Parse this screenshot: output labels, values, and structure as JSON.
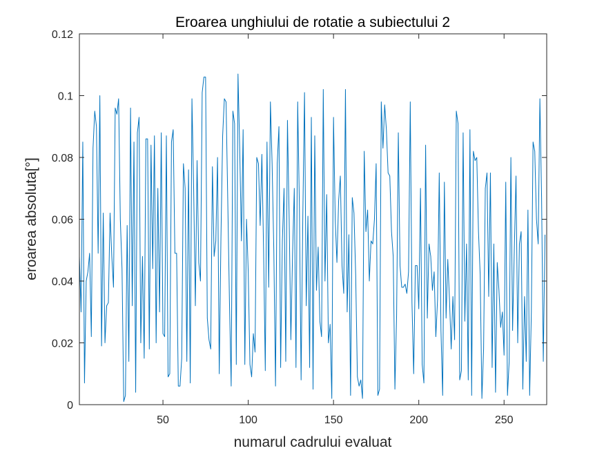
{
  "chart_data": {
    "type": "line",
    "title": "Eroarea unghiului de rotatie a subiectului 2",
    "xlabel": "numarul cadrului evaluat",
    "ylabel": "eroarea absoluta[°]",
    "xlim": [
      1,
      275
    ],
    "ylim": [
      0,
      0.12
    ],
    "xticks": [
      50,
      100,
      150,
      200,
      250
    ],
    "yticks": [
      0,
      0.02,
      0.04,
      0.06,
      0.08,
      0.1,
      0.12
    ],
    "grid": false,
    "series": [
      {
        "color": "#0072BD",
        "x_start": 1,
        "x_step": 1,
        "values": [
          0.048,
          0.03,
          0.085,
          0.007,
          0.04,
          0.043,
          0.049,
          0.022,
          0.083,
          0.095,
          0.09,
          0.049,
          0.1,
          0.019,
          0.062,
          0.02,
          0.032,
          0.033,
          0.062,
          0.048,
          0.038,
          0.096,
          0.094,
          0.099,
          0.06,
          0.044,
          0.001,
          0.003,
          0.058,
          0.014,
          0.096,
          0.032,
          0.085,
          0.004,
          0.088,
          0.093,
          0.02,
          0.048,
          0.015,
          0.086,
          0.086,
          0.018,
          0.084,
          0.044,
          0.087,
          0.02,
          0.07,
          0.03,
          0.088,
          0.023,
          0.022,
          0.087,
          0.009,
          0.01,
          0.085,
          0.089,
          0.049,
          0.049,
          0.006,
          0.006,
          0.015,
          0.078,
          0.07,
          0.014,
          0.076,
          0.007,
          0.099,
          0.07,
          0.032,
          0.079,
          0.046,
          0.04,
          0.101,
          0.106,
          0.106,
          0.028,
          0.021,
          0.018,
          0.077,
          0.048,
          0.053,
          0.08,
          0.01,
          0.054,
          0.087,
          0.099,
          0.098,
          0.066,
          0.033,
          0.006,
          0.095,
          0.091,
          0.013,
          0.107,
          0.083,
          0.053,
          0.089,
          0.013,
          0.06,
          0.043,
          0.013,
          0.009,
          0.023,
          0.017,
          0.08,
          0.078,
          0.058,
          0.081,
          0.05,
          0.011,
          0.085,
          0.038,
          0.098,
          0.078,
          0.05,
          0.006,
          0.078,
          0.09,
          0.012,
          0.053,
          0.07,
          0.014,
          0.092,
          0.06,
          0.021,
          0.049,
          0.07,
          0.012,
          0.098,
          0.064,
          0.008,
          0.061,
          0.101,
          0.032,
          0.061,
          0.012,
          0.093,
          0.005,
          0.087,
          0.037,
          0.051,
          0.027,
          0.022,
          0.102,
          0.04,
          0.068,
          0.02,
          0.026,
          0.002,
          0.093,
          0.06,
          0.046,
          0.066,
          0.074,
          0.045,
          0.036,
          0.102,
          0.03,
          0.055,
          0.003,
          0.067,
          0.062,
          0.042,
          0.009,
          0.006,
          0.008,
          0.002,
          0.082,
          0.056,
          0.063,
          0.04,
          0.053,
          0.052,
          0.06,
          0.078,
          0.003,
          0.005,
          0.098,
          0.083,
          0.097,
          0.089,
          0.075,
          0.074,
          0.056,
          0.048,
          0.005,
          0.029,
          0.088,
          0.045,
          0.038,
          0.038,
          0.039,
          0.036,
          0.043,
          0.098,
          0.033,
          0.01,
          0.045,
          0.045,
          0.031,
          0.07,
          0.013,
          0.007,
          0.084,
          0.028,
          0.052,
          0.048,
          0.037,
          0.043,
          0.022,
          0.034,
          0.075,
          0.024,
          0.003,
          0.072,
          0.028,
          0.047,
          0.034,
          0.018,
          0.035,
          0.021,
          0.095,
          0.091,
          0.008,
          0.011,
          0.088,
          0.027,
          0.052,
          0.008,
          0.089,
          0.003,
          0.082,
          0.079,
          0.08,
          0.056,
          0.042,
          0.002,
          0.018,
          0.07,
          0.075,
          0.035,
          0.075,
          0.012,
          0.052,
          0.004,
          0.046,
          0.037,
          0.025,
          0.03,
          0.016,
          0.072,
          0.003,
          0.014,
          0.08,
          0.024,
          0.05,
          0.074,
          0.02,
          0.052,
          0.056,
          0.005,
          0.035,
          0.014,
          0.063,
          0.003,
          0.03,
          0.085,
          0.082,
          0.06,
          0.052,
          0.099,
          0.067,
          0.014,
          0.055
        ]
      }
    ]
  }
}
